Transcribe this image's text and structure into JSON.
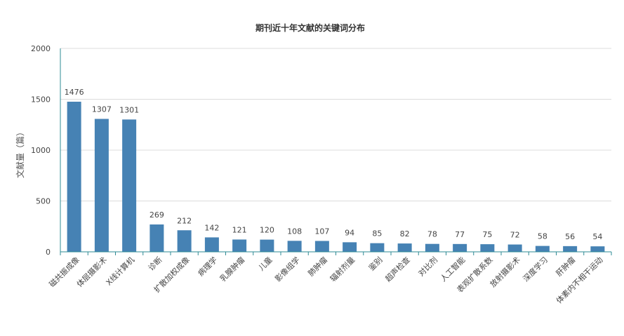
{
  "chart_data": {
    "type": "bar",
    "title": "期刊近十年文献的关键词分布",
    "ylabel": "文献量（篇）",
    "xlabel": "",
    "ylim": [
      0,
      2000
    ],
    "yticks": [
      0,
      500,
      1000,
      1500,
      2000
    ],
    "grid": true,
    "bar_color": "#4682b4",
    "axis_color": "#2e8b94",
    "categories": [
      "磁共振成像",
      "体层摄影术",
      "X线计算机",
      "诊断",
      "扩散加权成像",
      "病理学",
      "乳腺肿瘤",
      "儿童",
      "影像组学",
      "肺肿瘤",
      "辐射剂量",
      "鉴别",
      "超声检查",
      "对比剂",
      "人工智能",
      "表观扩散系数",
      "放射摄影术",
      "深度学习",
      "肝肿瘤",
      "体素内不相干运动"
    ],
    "values": [
      1476,
      1307,
      1301,
      269,
      212,
      142,
      121,
      120,
      108,
      107,
      94,
      85,
      82,
      78,
      77,
      75,
      72,
      58,
      56,
      54
    ]
  }
}
